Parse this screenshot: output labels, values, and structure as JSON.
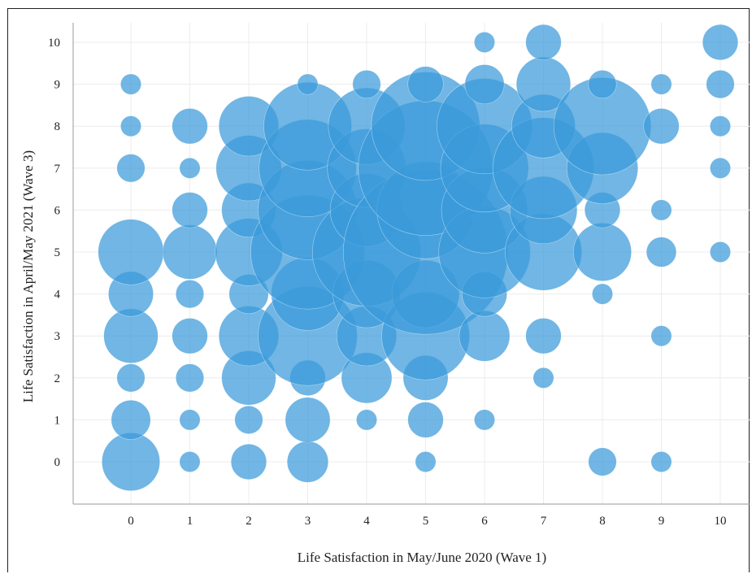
{
  "chart_data": {
    "type": "scatter",
    "variant": "bubble",
    "title": "",
    "xlabel": "Life Satisfaction in May/June 2020 (Wave 1)",
    "ylabel": "Life Satisfaction in April/May 2021 (Wave 3)",
    "x_ticks": [
      "0",
      "1",
      "2",
      "3",
      "4",
      "5",
      "6",
      "7",
      "8",
      "9",
      "10"
    ],
    "y_ticks": [
      "0",
      "1",
      "2",
      "3",
      "4",
      "5",
      "6",
      "7",
      "8",
      "9",
      "10"
    ],
    "xlim": [
      -1,
      10.5
    ],
    "ylim": [
      -1,
      10.5
    ],
    "grid": true,
    "bubble_color": "#3a9ad9",
    "bubble_opacity": 0.72,
    "size_encoding": "bubble area proportional to number of respondents (relative radius units below)",
    "points": [
      {
        "x": 0,
        "y": 0,
        "r": 1.55
      },
      {
        "x": 0,
        "y": 1,
        "r": 1.05
      },
      {
        "x": 0,
        "y": 2,
        "r": 0.75
      },
      {
        "x": 0,
        "y": 3,
        "r": 1.45
      },
      {
        "x": 0,
        "y": 4,
        "r": 1.2
      },
      {
        "x": 0,
        "y": 5,
        "r": 1.75
      },
      {
        "x": 0,
        "y": 7,
        "r": 0.75
      },
      {
        "x": 0,
        "y": 8,
        "r": 0.55
      },
      {
        "x": 0,
        "y": 9,
        "r": 0.55
      },
      {
        "x": 1,
        "y": 0,
        "r": 0.55
      },
      {
        "x": 1,
        "y": 1,
        "r": 0.55
      },
      {
        "x": 1,
        "y": 2,
        "r": 0.75
      },
      {
        "x": 1,
        "y": 3,
        "r": 0.95
      },
      {
        "x": 1,
        "y": 4,
        "r": 0.75
      },
      {
        "x": 1,
        "y": 5,
        "r": 1.45
      },
      {
        "x": 1,
        "y": 6,
        "r": 0.95
      },
      {
        "x": 1,
        "y": 7,
        "r": 0.55
      },
      {
        "x": 1,
        "y": 8,
        "r": 0.95
      },
      {
        "x": 2,
        "y": 0,
        "r": 0.95
      },
      {
        "x": 2,
        "y": 1,
        "r": 0.75
      },
      {
        "x": 2,
        "y": 2,
        "r": 1.45
      },
      {
        "x": 2,
        "y": 3,
        "r": 1.6
      },
      {
        "x": 2,
        "y": 4,
        "r": 1.05
      },
      {
        "x": 2,
        "y": 5,
        "r": 1.8
      },
      {
        "x": 2,
        "y": 6,
        "r": 1.45
      },
      {
        "x": 2,
        "y": 7,
        "r": 1.75
      },
      {
        "x": 2,
        "y": 8,
        "r": 1.6
      },
      {
        "x": 3,
        "y": 0,
        "r": 1.1
      },
      {
        "x": 3,
        "y": 1,
        "r": 1.2
      },
      {
        "x": 3,
        "y": 2,
        "r": 0.95
      },
      {
        "x": 3,
        "y": 3,
        "r": 2.65
      },
      {
        "x": 3,
        "y": 4,
        "r": 1.95
      },
      {
        "x": 3,
        "y": 5,
        "r": 3.05
      },
      {
        "x": 3,
        "y": 6,
        "r": 2.65
      },
      {
        "x": 3,
        "y": 7,
        "r": 2.6
      },
      {
        "x": 3,
        "y": 8,
        "r": 2.35
      },
      {
        "x": 3,
        "y": 9,
        "r": 0.55
      },
      {
        "x": 4,
        "y": 1,
        "r": 0.55
      },
      {
        "x": 4,
        "y": 2,
        "r": 1.35
      },
      {
        "x": 4,
        "y": 3,
        "r": 1.6
      },
      {
        "x": 4,
        "y": 4,
        "r": 1.8
      },
      {
        "x": 4,
        "y": 5,
        "r": 2.9
      },
      {
        "x": 4,
        "y": 6,
        "r": 1.95
      },
      {
        "x": 4,
        "y": 7,
        "r": 2.1
      },
      {
        "x": 4,
        "y": 8,
        "r": 2.05
      },
      {
        "x": 4,
        "y": 9,
        "r": 0.75
      },
      {
        "x": 5,
        "y": 0,
        "r": 0.55
      },
      {
        "x": 5,
        "y": 1,
        "r": 0.95
      },
      {
        "x": 5,
        "y": 2,
        "r": 1.2
      },
      {
        "x": 5,
        "y": 3,
        "r": 2.35
      },
      {
        "x": 5,
        "y": 4,
        "r": 1.8
      },
      {
        "x": 5,
        "y": 5,
        "r": 4.4
      },
      {
        "x": 5,
        "y": 6,
        "r": 2.6
      },
      {
        "x": 5,
        "y": 7,
        "r": 3.6
      },
      {
        "x": 5,
        "y": 8,
        "r": 2.9
      },
      {
        "x": 5,
        "y": 9,
        "r": 0.95
      },
      {
        "x": 6,
        "y": 1,
        "r": 0.55
      },
      {
        "x": 6,
        "y": 3,
        "r": 1.35
      },
      {
        "x": 6,
        "y": 4,
        "r": 1.2
      },
      {
        "x": 6,
        "y": 5,
        "r": 2.45
      },
      {
        "x": 6,
        "y": 6,
        "r": 2.3
      },
      {
        "x": 6,
        "y": 7,
        "r": 2.35
      },
      {
        "x": 6,
        "y": 8,
        "r": 2.55
      },
      {
        "x": 6,
        "y": 9,
        "r": 1.05
      },
      {
        "x": 6,
        "y": 10,
        "r": 0.55
      },
      {
        "x": 7,
        "y": 2,
        "r": 0.55
      },
      {
        "x": 7,
        "y": 3,
        "r": 0.95
      },
      {
        "x": 7,
        "y": 5,
        "r": 2.05
      },
      {
        "x": 7,
        "y": 6,
        "r": 1.8
      },
      {
        "x": 7,
        "y": 7,
        "r": 2.7
      },
      {
        "x": 7,
        "y": 8,
        "r": 1.7
      },
      {
        "x": 7,
        "y": 9,
        "r": 1.45
      },
      {
        "x": 7,
        "y": 10,
        "r": 0.95
      },
      {
        "x": 8,
        "y": 0,
        "r": 0.75
      },
      {
        "x": 8,
        "y": 4,
        "r": 0.55
      },
      {
        "x": 8,
        "y": 5,
        "r": 1.55
      },
      {
        "x": 8,
        "y": 6,
        "r": 0.95
      },
      {
        "x": 8,
        "y": 7,
        "r": 1.9
      },
      {
        "x": 8,
        "y": 8,
        "r": 2.6
      },
      {
        "x": 8,
        "y": 9,
        "r": 0.75
      },
      {
        "x": 9,
        "y": 0,
        "r": 0.55
      },
      {
        "x": 9,
        "y": 3,
        "r": 0.55
      },
      {
        "x": 9,
        "y": 5,
        "r": 0.8
      },
      {
        "x": 9,
        "y": 6,
        "r": 0.55
      },
      {
        "x": 9,
        "y": 8,
        "r": 0.95
      },
      {
        "x": 9,
        "y": 9,
        "r": 0.55
      },
      {
        "x": 10,
        "y": 5,
        "r": 0.55
      },
      {
        "x": 10,
        "y": 7,
        "r": 0.55
      },
      {
        "x": 10,
        "y": 8,
        "r": 0.55
      },
      {
        "x": 10,
        "y": 9,
        "r": 0.75
      },
      {
        "x": 10,
        "y": 10,
        "r": 0.95
      }
    ]
  }
}
